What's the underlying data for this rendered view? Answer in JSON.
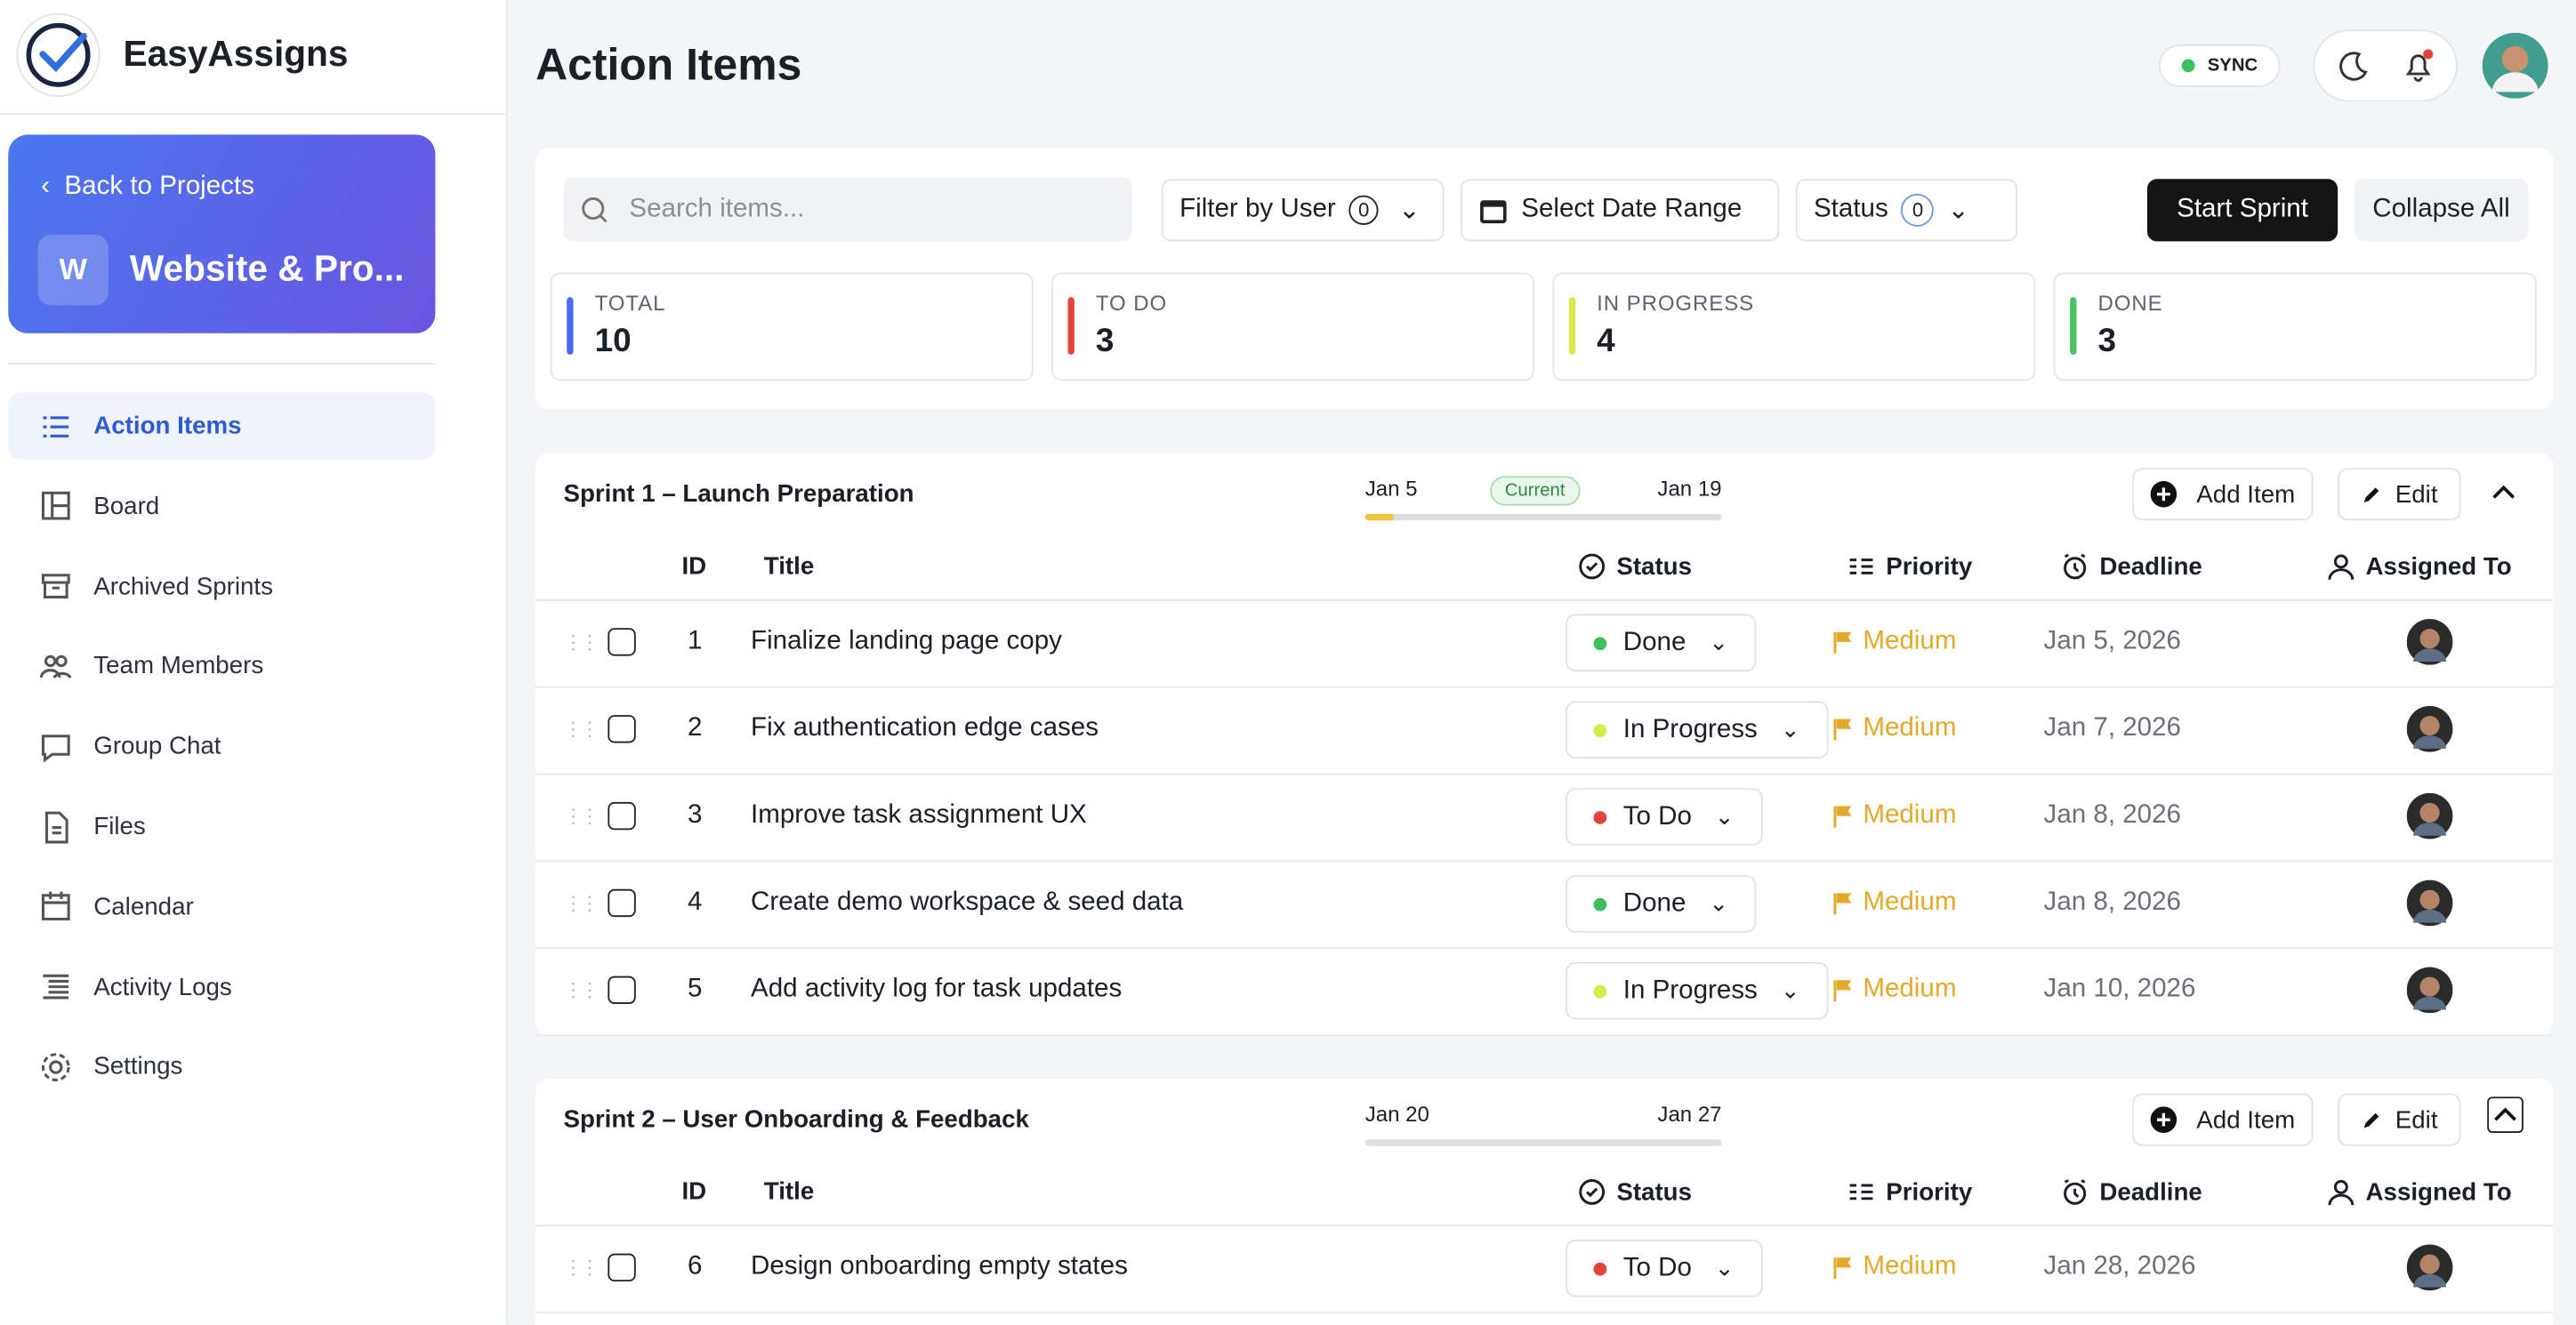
{
  "sidebar": {
    "brand": "EasyAssigns",
    "back": "Back to Projects",
    "project_initial": "W",
    "project_name": "Website & Pro...",
    "nav": [
      "Action Items",
      "Board",
      "Archived Sprints",
      "Team Members",
      "Group Chat",
      "Files",
      "Calendar",
      "Activity Logs",
      "Settings"
    ],
    "active": 0
  },
  "header": {
    "title": "Action Items",
    "sync": "SYNC"
  },
  "toolbar": {
    "search_placeholder": "Search items...",
    "filter_user": "Filter by User",
    "filter_user_count": 0,
    "date_range": "Select Date Range",
    "status": "Status",
    "status_count": 0,
    "start_sprint": "Start Sprint",
    "collapse_all": "Collapse All"
  },
  "stats": [
    {
      "label": "TOTAL",
      "value": 10,
      "color": "#4a6cf0"
    },
    {
      "label": "TO DO",
      "value": 3,
      "color": "#e0443a"
    },
    {
      "label": "IN PROGRESS",
      "value": 4,
      "color": "#d7ea4a"
    },
    {
      "label": "DONE",
      "value": 3,
      "color": "#4cc064"
    }
  ],
  "actions": {
    "add_item": "Add Item",
    "edit": "Edit"
  },
  "columns": [
    "ID",
    "Title",
    "Status",
    "Priority",
    "Deadline",
    "Assigned To"
  ],
  "status_colors": {
    "Done": "#3dbf5b",
    "In Progress": "#d6ea4b",
    "To Do": "#e0443a"
  },
  "sprints": [
    {
      "name": "Sprint 1 – Launch Preparation",
      "start": "Jan 5",
      "end": "Jan 19",
      "badge": "Current",
      "progress": 8,
      "items": [
        {
          "id": 1,
          "title": "Finalize landing page copy",
          "status": "Done",
          "priority": "Medium",
          "deadline": "Jan 5, 2026"
        },
        {
          "id": 2,
          "title": "Fix authentication edge cases",
          "status": "In Progress",
          "priority": "Medium",
          "deadline": "Jan 7, 2026"
        },
        {
          "id": 3,
          "title": "Improve task assignment UX",
          "status": "To Do",
          "priority": "Medium",
          "deadline": "Jan 8, 2026"
        },
        {
          "id": 4,
          "title": "Create demo workspace & seed data",
          "status": "Done",
          "priority": "Medium",
          "deadline": "Jan 8, 2026"
        },
        {
          "id": 5,
          "title": "Add activity log for task updates",
          "status": "In Progress",
          "priority": "Medium",
          "deadline": "Jan 10, 2026"
        }
      ]
    },
    {
      "name": "Sprint 2 – User Onboarding & Feedback",
      "start": "Jan 20",
      "end": "Jan 27",
      "progress": 0,
      "items": [
        {
          "id": 6,
          "title": "Design onboarding empty states",
          "status": "To Do",
          "priority": "Medium",
          "deadline": "Jan 28, 2026"
        }
      ]
    }
  ]
}
